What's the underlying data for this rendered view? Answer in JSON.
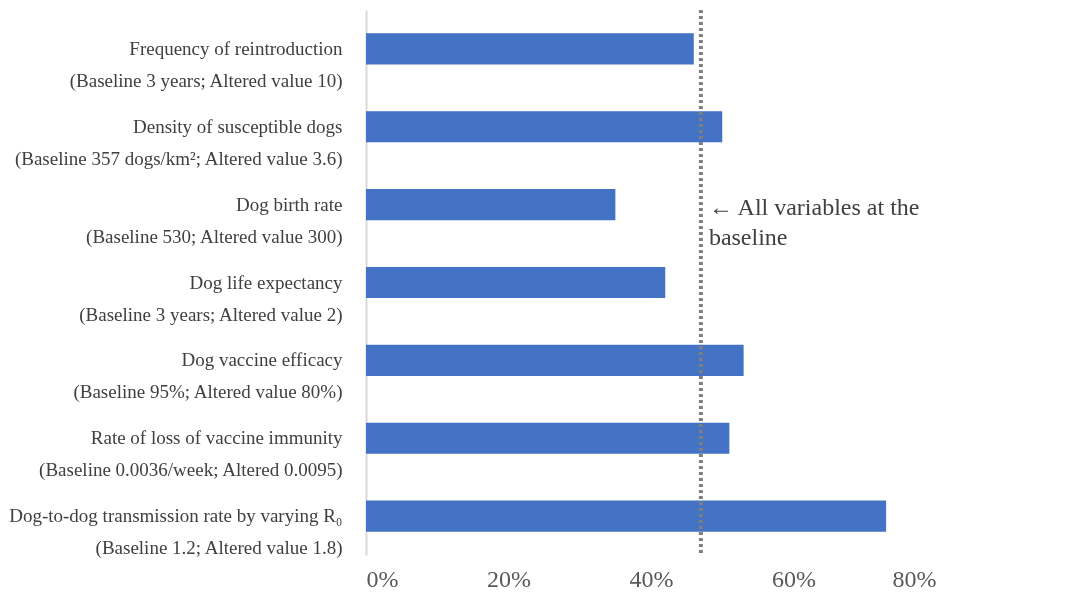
{
  "chart_data": {
    "type": "bar",
    "orientation": "horizontal",
    "color": "#4472c4",
    "categories": [
      "Frequency of reintroduction\n(Baseline 3 years; Altered value 10)",
      "Density of susceptible dogs\n(Baseline 357 dogs/km²; Altered value 3.6)",
      "Dog birth rate\n(Baseline 530; Altered value 300)",
      "Dog life expectancy\n(Baseline 3 years; Altered value 2)",
      "Dog vaccine efficacy\n(Baseline 95%; Altered value 80%)",
      "Rate of loss of vaccine immunity\n(Baseline 0.0036/week; Altered 0.0095)",
      "Dog-to-dog transmission rate by varying R₀\n(Baseline 1.2; Altered value 1.8)"
    ],
    "values": [
      46,
      50,
      35,
      42,
      53,
      51,
      73
    ],
    "xlim": [
      0,
      80
    ],
    "xticks": [
      {
        "value": 0,
        "label": "0%"
      },
      {
        "value": 20,
        "label": "20%"
      },
      {
        "value": 40,
        "label": "40%"
      },
      {
        "value": 60,
        "label": "60%"
      },
      {
        "value": 80,
        "label": "80%"
      }
    ],
    "ref_lines": [
      {
        "axis": "x",
        "value": 47,
        "label": "← All variables at the\nbaseline",
        "color": "#7f7f7f",
        "line_style": "dotted"
      }
    ]
  }
}
